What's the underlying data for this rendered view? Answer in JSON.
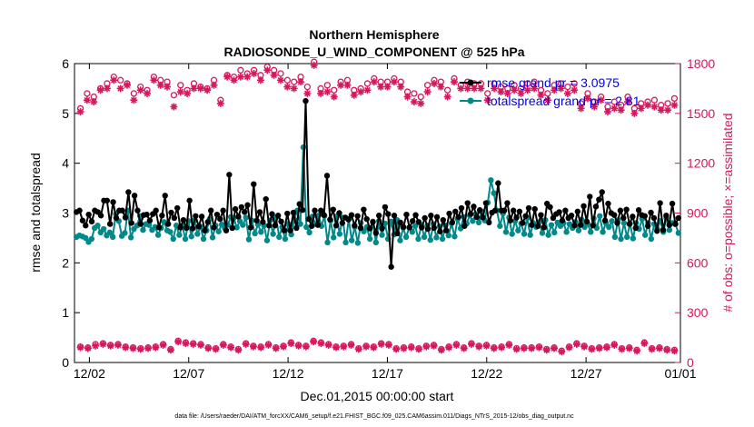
{
  "chart_data": {
    "type": "line",
    "title": "Northern Hemisphere",
    "subtitle": "RADIOSONDE_U_WIND_COMPONENT @ 525 hPa",
    "xlabel": "Dec.01,2015 00:00:00 start",
    "ylabel_left": "rmse and totalspread",
    "ylabel_right": "# of obs: o=possible; ×=assimilated",
    "footer": "data file: /Users/raeder/DAI/ATM_forcXX/CAM6_setup/f.e21.FHIST_BGC.f09_025.CAM6assim.011/Diags_NTrS_2015-12/obs_diag_output.nc",
    "xlim": [
      0.5,
      31.0
    ],
    "ylim_left": [
      0,
      6
    ],
    "ylim_right": [
      0,
      1800
    ],
    "x_ticks": [
      1.25,
      6.25,
      11.25,
      16.25,
      21.25,
      26.25,
      31.0
    ],
    "x_tick_labels": [
      "12/02",
      "12/07",
      "12/12",
      "12/17",
      "12/22",
      "12/27",
      "01/01"
    ],
    "y_ticks_left": [
      0,
      1,
      2,
      3,
      4,
      5,
      6
    ],
    "y_ticks_right": [
      0,
      300,
      600,
      900,
      1200,
      1500,
      1800
    ],
    "colors": {
      "rmse": "#000000",
      "spread": "#00888a",
      "obs": "#d6175d",
      "legend_text": "#0000ee",
      "axis": "#000000"
    },
    "legend": [
      {
        "series": "rmse",
        "label": "rmse grand pr = 3.0975"
      },
      {
        "series": "spread",
        "label": "totalspread grand pr = 2.81"
      }
    ],
    "times_start": 0.75,
    "times_step": 0.25,
    "series": [
      {
        "name": "rmse",
        "axis": "left",
        "values": [
          3.02,
          3.05,
          2.85,
          2.75,
          2.97,
          2.83,
          3.05,
          3.02,
          2.95,
          3.25,
          3.25,
          2.78,
          3.22,
          2.9,
          3.05,
          3.05,
          2.91,
          3.42,
          2.8,
          3.35,
          3.05,
          2.78,
          2.96,
          2.97,
          2.85,
          2.98,
          3.05,
          2.71,
          2.95,
          3.35,
          2.78,
          3.01,
          2.9,
          3.1,
          2.71,
          2.86,
          2.7,
          3.25,
          2.69,
          2.94,
          2.73,
          2.93,
          2.65,
          2.82,
          3.05,
          2.71,
          2.97,
          2.88,
          3.05,
          2.65,
          3.77,
          2.7,
          3.08,
          2.93,
          3.12,
          3.02,
          3.16,
          2.71,
          3.58,
          2.85,
          3.02,
          2.82,
          3.28,
          2.75,
          2.98,
          2.75,
          2.95,
          2.83,
          2.65,
          2.99,
          2.65,
          3.01,
          2.7,
          3.18,
          3.06,
          5.25,
          2.88,
          2.74,
          3.05,
          2.76,
          3.05,
          2.96,
          3.75,
          2.87,
          3.07,
          2.75,
          3.0,
          2.8,
          2.91,
          2.87,
          2.96,
          2.75,
          2.94,
          2.7,
          3.07,
          2.88,
          2.69,
          2.82,
          2.6,
          2.95,
          2.69,
          3.12,
          2.98,
          1.92,
          2.95,
          2.59,
          2.81,
          2.72,
          2.97,
          2.71,
          2.84,
          2.96,
          2.82,
          2.71,
          2.9,
          2.68,
          2.95,
          2.7,
          2.92,
          2.63,
          2.86,
          2.65,
          2.99,
          2.81,
          3.03,
          2.92,
          3.1,
          2.74,
          3.2,
          2.98,
          3.13,
          2.92,
          3.06,
          2.91,
          3.2,
          2.81,
          3.01,
          3.05,
          3.6,
          3.05,
          3.05,
          3.2,
          2.85,
          3.05,
          2.91,
          3.03,
          2.8,
          2.94,
          3.1,
          2.76,
          3.08,
          2.74,
          2.96,
          2.71,
          3.19,
          3.12,
          2.9,
          2.98,
          3.02,
          2.85,
          3.05,
          2.9,
          2.95,
          2.75,
          3.03,
          2.76,
          3.14,
          2.83,
          3.33,
          2.75,
          3.13,
          3.27,
          3.42,
          2.85,
          3.19,
          3.0,
          2.96,
          2.8,
          3.05,
          2.9,
          3.07,
          2.78,
          2.93,
          2.7,
          3.06,
          2.96,
          2.94,
          2.74,
          3.01,
          2.9,
          2.64,
          3.2,
          2.66,
          2.95,
          2.76,
          3.19,
          2.78,
          2.9
        ]
      },
      {
        "name": "spread",
        "axis": "left",
        "values": [
          2.52,
          2.55,
          2.53,
          2.5,
          2.42,
          2.48,
          2.7,
          2.75,
          2.61,
          2.68,
          2.55,
          2.61,
          2.52,
          2.98,
          2.84,
          2.54,
          2.6,
          3.05,
          2.51,
          2.68,
          2.75,
          2.94,
          2.66,
          2.78,
          2.76,
          2.66,
          2.72,
          2.56,
          2.7,
          2.82,
          2.65,
          2.62,
          2.48,
          2.75,
          2.56,
          2.74,
          2.48,
          2.84,
          2.53,
          2.85,
          2.58,
          2.73,
          2.48,
          2.65,
          2.88,
          2.51,
          2.75,
          2.63,
          2.77,
          2.7,
          2.76,
          2.92,
          2.9,
          2.71,
          2.84,
          2.76,
          2.91,
          2.47,
          2.85,
          2.59,
          2.77,
          2.62,
          2.75,
          2.45,
          2.85,
          2.58,
          2.91,
          2.52,
          2.72,
          2.48,
          2.78,
          2.57,
          2.87,
          3.05,
          2.78,
          4.32,
          2.72,
          2.61,
          2.93,
          2.78,
          2.95,
          2.74,
          2.94,
          2.41,
          2.85,
          2.51,
          2.93,
          2.58,
          2.91,
          2.41,
          2.88,
          2.45,
          2.72,
          2.4,
          2.8,
          2.63,
          2.72,
          2.48,
          2.83,
          2.41,
          2.84,
          2.56,
          2.79,
          2.48,
          2.83,
          2.57,
          2.86,
          2.45,
          2.7,
          2.52,
          2.71,
          2.62,
          2.74,
          2.48,
          2.76,
          2.52,
          2.75,
          2.46,
          2.78,
          2.51,
          2.73,
          2.48,
          2.75,
          2.55,
          2.79,
          2.53,
          2.88,
          2.69,
          2.92,
          2.79,
          2.95,
          2.84,
          2.98,
          2.81,
          3.03,
          2.85,
          3.21,
          3.66,
          3.4,
          3.05,
          2.74,
          2.99,
          2.62,
          2.91,
          2.58,
          2.84,
          2.65,
          2.79,
          2.58,
          2.9,
          2.56,
          2.8,
          2.72,
          2.82,
          2.6,
          2.86,
          2.56,
          2.76,
          2.61,
          2.81,
          2.74,
          2.8,
          2.62,
          2.78,
          2.7,
          2.82,
          2.65,
          2.87,
          2.72,
          2.79,
          2.62,
          2.89,
          2.7,
          2.94,
          2.62,
          2.8,
          2.72,
          2.84,
          2.52,
          2.86,
          2.48,
          2.8,
          2.52,
          2.79,
          2.49,
          2.8,
          2.68,
          2.88,
          2.56,
          2.8,
          2.48,
          2.78,
          2.68,
          2.84,
          2.62,
          2.9,
          2.66,
          2.8,
          2.78,
          2.6
        ]
      },
      {
        "name": "obs_possible",
        "axis": "right",
        "marker": "o",
        "values": [
          1530,
          1620,
          1600,
          1650,
          1680,
          1720,
          1700,
          1680,
          1620,
          1660,
          1640,
          1720,
          1700,
          1690,
          1610,
          1670,
          1640,
          1680,
          1660,
          1650,
          1700,
          1580,
          1730,
          1720,
          1760,
          1740,
          1760,
          1730,
          1780,
          1760,
          1740,
          1700,
          1690,
          1720,
          1660,
          1810,
          1650,
          1670,
          1640,
          1690,
          1700,
          1640,
          1650,
          1680,
          1710,
          1690,
          1690,
          1710,
          1690,
          1630,
          1620,
          1600,
          1670,
          1700,
          1690,
          1640,
          1710,
          1670,
          1690,
          1680,
          1680,
          1620,
          1680,
          1660,
          1650,
          1670,
          1650,
          1680,
          1690,
          1640,
          1620,
          1670,
          1680,
          1660,
          1680,
          1560,
          1620,
          1570,
          1600,
          1540,
          1570,
          1550,
          1600,
          1530,
          1560,
          1570,
          1580,
          1550,
          1560,
          1590
        ]
      },
      {
        "name": "obs_assimilated",
        "axis": "right",
        "marker": "x",
        "values": [
          1510,
          1580,
          1570,
          1640,
          1650,
          1700,
          1650,
          1670,
          1580,
          1640,
          1620,
          1700,
          1670,
          1660,
          1540,
          1630,
          1620,
          1650,
          1650,
          1640,
          1670,
          1560,
          1720,
          1700,
          1720,
          1720,
          1740,
          1700,
          1760,
          1730,
          1700,
          1660,
          1650,
          1690,
          1620,
          1790,
          1620,
          1630,
          1600,
          1670,
          1670,
          1610,
          1630,
          1640,
          1690,
          1660,
          1660,
          1690,
          1660,
          1600,
          1570,
          1560,
          1630,
          1680,
          1660,
          1600,
          1690,
          1650,
          1650,
          1650,
          1650,
          1580,
          1650,
          1630,
          1620,
          1640,
          1620,
          1640,
          1650,
          1610,
          1580,
          1640,
          1650,
          1620,
          1640,
          1530,
          1590,
          1540,
          1580,
          1510,
          1530,
          1520,
          1570,
          1500,
          1530,
          1550,
          1540,
          1520,
          1520,
          1550
        ]
      },
      {
        "name": "obs_bottom_possible",
        "axis": "right",
        "marker": "o",
        "values": [
          95,
          90,
          110,
          115,
          105,
          110,
          95,
          90,
          85,
          90,
          95,
          110,
          80,
          130,
          120,
          115,
          110,
          90,
          85,
          110,
          95,
          80,
          115,
          100,
          95,
          110,
          90,
          100,
          120,
          105,
          100,
          130,
          120,
          110,
          95,
          100,
          110,
          85,
          100,
          95,
          115,
          110,
          85,
          90,
          95,
          85,
          100,
          105,
          80,
          95,
          110,
          90,
          115,
          100,
          105,
          90,
          95,
          110,
          85,
          90,
          90,
          95,
          80,
          90,
          70,
          95,
          115,
          100,
          85,
          90,
          95,
          110,
          85,
          90,
          75,
          120,
          85,
          90,
          80,
          75
        ]
      },
      {
        "name": "obs_bottom_assimilated",
        "axis": "right",
        "marker": "x",
        "values": [
          90,
          85,
          100,
          110,
          100,
          105,
          90,
          85,
          80,
          85,
          90,
          105,
          75,
          125,
          115,
          110,
          105,
          85,
          80,
          105,
          90,
          75,
          110,
          95,
          90,
          105,
          85,
          95,
          115,
          100,
          95,
          125,
          115,
          105,
          90,
          95,
          105,
          80,
          95,
          90,
          110,
          105,
          80,
          85,
          90,
          80,
          95,
          100,
          75,
          90,
          105,
          85,
          110,
          95,
          100,
          85,
          90,
          105,
          80,
          85,
          85,
          90,
          75,
          85,
          65,
          90,
          110,
          95,
          80,
          85,
          90,
          105,
          80,
          85,
          70,
          115,
          80,
          85,
          75,
          70
        ]
      }
    ]
  }
}
